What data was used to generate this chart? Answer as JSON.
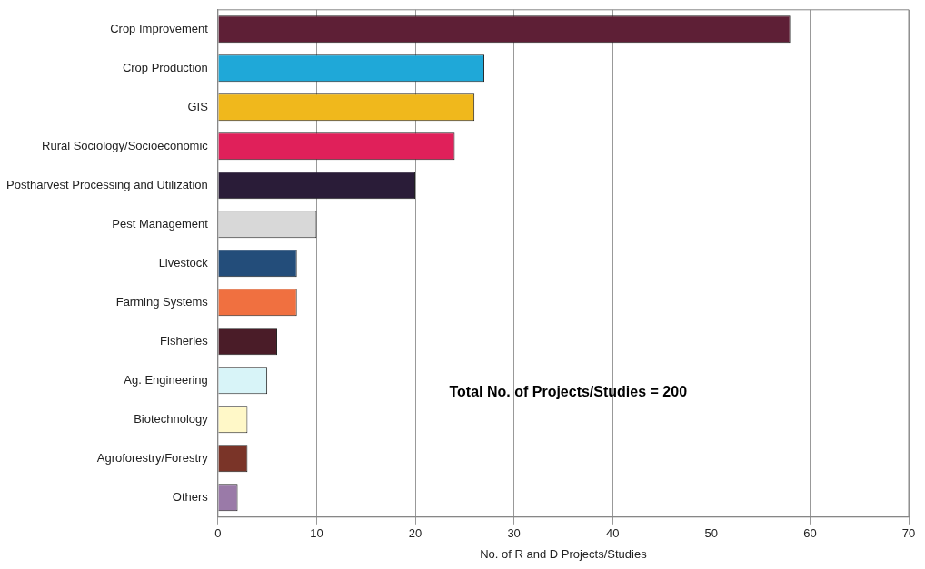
{
  "chart_data": {
    "type": "bar",
    "orientation": "horizontal",
    "xlabel": "No. of R and D Projects/Studies",
    "categories": [
      "Crop Improvement",
      "Crop Production",
      "GIS",
      "Rural Sociology/Socioeconomic",
      "Postharvest Processing and Utilization",
      "Pest Management",
      "Livestock",
      "Farming Systems",
      "Fisheries",
      "Ag. Engineering",
      "Biotechnology",
      "Agroforestry/Forestry",
      "Others"
    ],
    "values": [
      58,
      27,
      26,
      24,
      20,
      10,
      8,
      8,
      6,
      5,
      3,
      3,
      2
    ],
    "colors": [
      "#5e1f36",
      "#1fa8d8",
      "#f0b81c",
      "#e0205a",
      "#2a1c38",
      "#d8d8d8",
      "#234d7a",
      "#f07040",
      "#4a1c28",
      "#d8f4f8",
      "#fff8c8",
      "#7a3428",
      "#9a7aa8"
    ],
    "xlim": [
      0,
      70
    ],
    "xticks": [
      0,
      10,
      20,
      30,
      40,
      50,
      60,
      70
    ],
    "grid": "x",
    "annotations": [
      "Total No. of Projects/Studies = 200"
    ]
  }
}
